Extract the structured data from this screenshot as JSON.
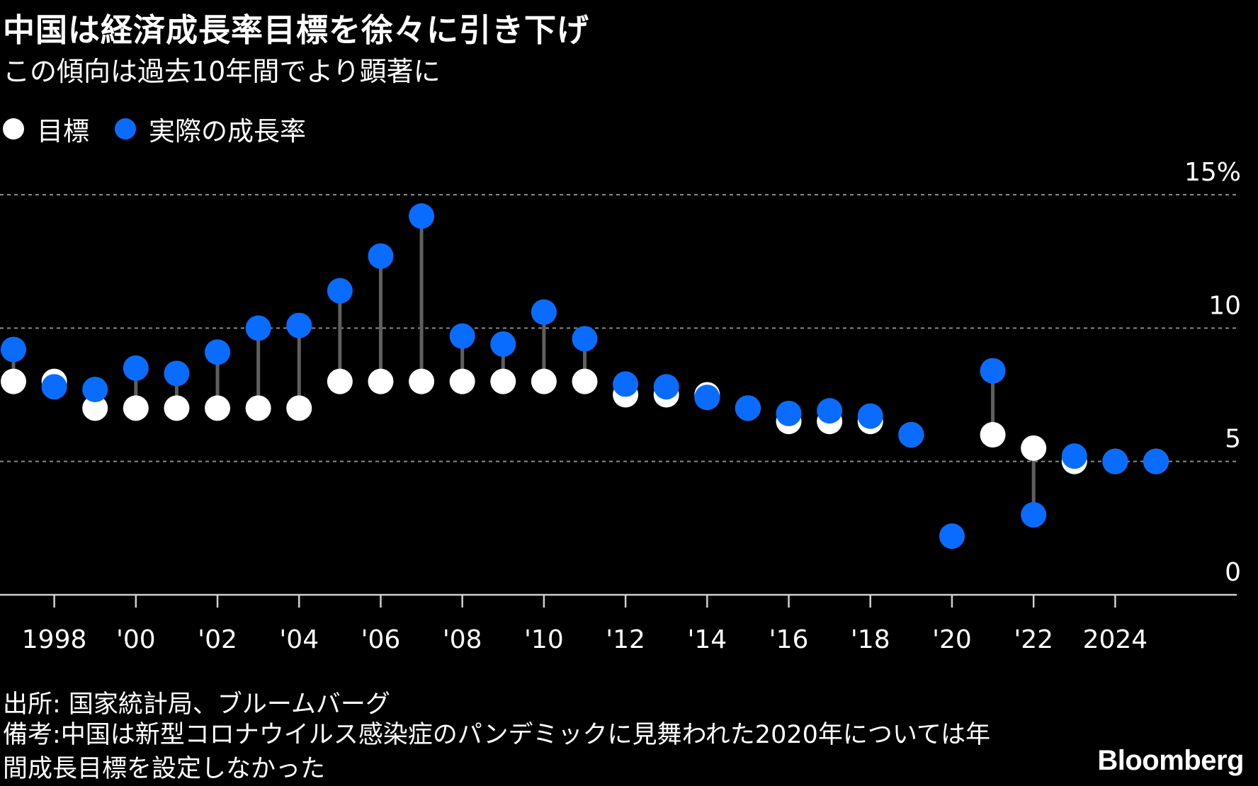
{
  "header": {
    "title": "中国は経済成長率目標を徐々に引き下げ",
    "subtitle": "この傾向は過去10年間でより顕著に"
  },
  "legend": {
    "target_label": "目標",
    "actual_label": "実際の成長率"
  },
  "colors": {
    "background": "#000000",
    "target": "#ffffff",
    "actual": "#0a6cff",
    "stem": "#5f5f5f",
    "grid": "#8a8a8a"
  },
  "footer": {
    "source": "出所: 国家統計局、ブルームバーグ",
    "note": "備考:中国は新型コロナウイルス感染症のパンデミックに見舞われた2020年については年間成長目標を設定しなかった",
    "brand": "Bloomberg"
  },
  "chart_data": {
    "type": "scatter",
    "title": "中国は経済成長率目標を徐々に引き下げ",
    "subtitle": "この傾向は過去10年間でより顕著に",
    "x": [
      1997,
      1998,
      1999,
      2000,
      2001,
      2002,
      2003,
      2004,
      2005,
      2006,
      2007,
      2008,
      2009,
      2010,
      2011,
      2012,
      2013,
      2014,
      2015,
      2016,
      2017,
      2018,
      2019,
      2020,
      2021,
      2022,
      2023,
      2024,
      2025
    ],
    "series": [
      {
        "name": "目標",
        "values": [
          8,
          8,
          7,
          7,
          7,
          7,
          7,
          7,
          8,
          8,
          8,
          8,
          8,
          8,
          8,
          7.5,
          7.5,
          7.5,
          7,
          6.5,
          6.5,
          6.5,
          6,
          null,
          6,
          5.5,
          5,
          5,
          5
        ]
      },
      {
        "name": "実際の成長率",
        "values": [
          9.2,
          7.8,
          7.7,
          8.5,
          8.3,
          9.1,
          10,
          10.1,
          11.4,
          12.7,
          14.2,
          9.7,
          9.4,
          10.6,
          9.6,
          7.9,
          7.8,
          7.4,
          7,
          6.8,
          6.9,
          6.7,
          6,
          2.2,
          8.4,
          3,
          5.2,
          5,
          5
        ]
      }
    ],
    "x_tick_values": [
      1998,
      2000,
      2002,
      2004,
      2006,
      2008,
      2010,
      2012,
      2014,
      2016,
      2018,
      2020,
      2022,
      2024
    ],
    "x_tick_labels": [
      "1998",
      "'00",
      "'02",
      "'04",
      "'06",
      "'08",
      "'10",
      "'12",
      "'14",
      "'16",
      "'18",
      "'20",
      "'22",
      "2024"
    ],
    "y_tick_values": [
      0,
      5,
      10,
      15
    ],
    "y_tick_labels": [
      "0",
      "5",
      "10",
      "15%"
    ],
    "ylim": [
      0,
      15
    ],
    "grid": true,
    "legend_position": "top-left"
  }
}
